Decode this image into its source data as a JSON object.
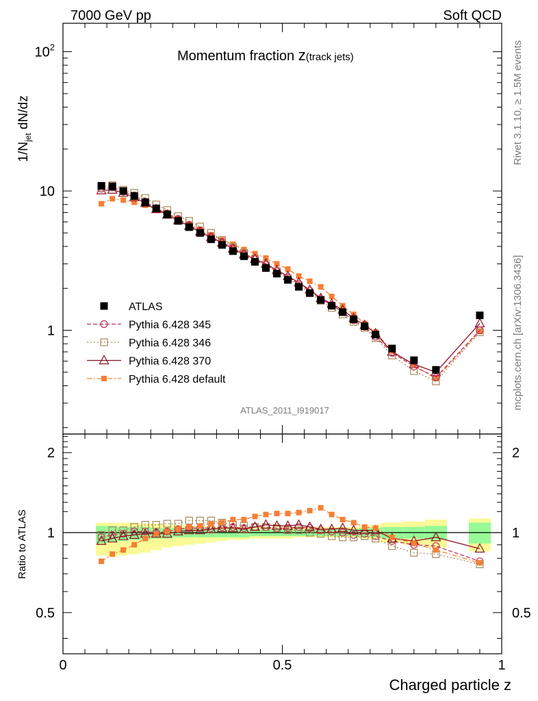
{
  "header": {
    "left": "7000 GeV pp",
    "right": "Soft QCD"
  },
  "side_text": {
    "top": "Rivet 3.1.10, ≥ 1.5M events",
    "bottom": "mcplots.cern.ch [arXiv:1306.3436]"
  },
  "chart_data": {
    "type": "line",
    "title_main": "Momentum fraction ",
    "title_var": "z",
    "title_sub": "(track jets)",
    "analysis_id": "ATLAS_2011_I919017",
    "ylabel_main": "1/N",
    "ylabel_sub": "jet",
    "ylabel_rest": " dN/dz",
    "ylabel_ratio": "Ratio to ATLAS",
    "xlabel": "Charged particle z",
    "xlim": [
      0,
      1
    ],
    "ylim": [
      0.18,
      160
    ],
    "ratio_ylim": [
      0.35,
      2.35
    ],
    "x_ticklabels": [
      "0",
      "0.5",
      "1"
    ],
    "x_ticks": [
      0,
      0.5,
      1
    ],
    "y_ticklabels": [
      "1",
      "10"
    ],
    "y_ticks": [
      1,
      10
    ],
    "y_top_label_base": "10",
    "y_top_label_exp": "2",
    "y_top_value": 100,
    "ratio_ticklabels": [
      "0.5",
      "1",
      "2"
    ],
    "ratio_ticks": [
      0.5,
      1,
      2
    ],
    "x": [
      0.0875,
      0.1125,
      0.1375,
      0.1625,
      0.1875,
      0.2125,
      0.2375,
      0.2625,
      0.2875,
      0.3125,
      0.3375,
      0.3625,
      0.3875,
      0.4125,
      0.4375,
      0.4625,
      0.4875,
      0.5125,
      0.5375,
      0.5625,
      0.5875,
      0.6125,
      0.6375,
      0.6625,
      0.6875,
      0.7125,
      0.75,
      0.8,
      0.85,
      0.95
    ],
    "series": [
      {
        "name": "ATLAS",
        "color": "#000000",
        "marker": "square-filled",
        "line": "none",
        "values": [
          10.9,
          10.8,
          10.0,
          9.2,
          8.3,
          7.5,
          6.8,
          6.1,
          5.5,
          5.0,
          4.5,
          4.1,
          3.7,
          3.4,
          3.1,
          2.8,
          2.55,
          2.3,
          2.05,
          1.85,
          1.65,
          1.5,
          1.35,
          1.2,
          1.07,
          0.93,
          0.74,
          0.61,
          0.52,
          1.28
        ]
      },
      {
        "name": "Pythia 6.428 345",
        "color": "#c0305a",
        "marker": "circle-open",
        "line": "dashed",
        "values": [
          10.4,
          10.6,
          9.9,
          9.3,
          8.4,
          7.5,
          6.9,
          6.3,
          5.7,
          5.2,
          4.7,
          4.3,
          3.9,
          3.55,
          3.25,
          2.95,
          2.65,
          2.4,
          2.15,
          1.92,
          1.68,
          1.52,
          1.35,
          1.18,
          1.06,
          0.9,
          0.69,
          0.55,
          0.46,
          1.0
        ]
      },
      {
        "name": "Pythia 6.428 346",
        "color": "#a88858",
        "marker": "square-open",
        "line": "dotted",
        "values": [
          10.7,
          11.0,
          10.2,
          9.7,
          8.9,
          8.0,
          7.3,
          6.6,
          6.1,
          5.55,
          5.0,
          4.45,
          3.95,
          3.6,
          3.25,
          2.95,
          2.65,
          2.35,
          2.1,
          1.85,
          1.63,
          1.45,
          1.3,
          1.15,
          1.04,
          0.88,
          0.66,
          0.51,
          0.43,
          0.97
        ]
      },
      {
        "name": "Pythia 6.428 370",
        "color": "#8a1020",
        "marker": "triangle-open",
        "line": "solid",
        "values": [
          10.1,
          10.2,
          9.7,
          9.0,
          8.2,
          7.4,
          6.75,
          6.15,
          5.6,
          5.1,
          4.65,
          4.25,
          3.85,
          3.5,
          3.25,
          3.0,
          2.7,
          2.45,
          2.2,
          1.95,
          1.7,
          1.55,
          1.4,
          1.22,
          1.09,
          0.95,
          0.7,
          0.57,
          0.5,
          1.12
        ]
      },
      {
        "name": "Pythia 6.428 default",
        "color": "#f47f36",
        "marker": "square-filled-small",
        "line": "dashdot",
        "values": [
          8.1,
          8.8,
          8.6,
          8.3,
          7.9,
          7.4,
          6.9,
          6.3,
          5.8,
          5.3,
          4.85,
          4.45,
          4.15,
          3.8,
          3.55,
          3.3,
          3.0,
          2.75,
          2.45,
          2.25,
          2.05,
          1.75,
          1.5,
          1.3,
          1.12,
          0.97,
          0.71,
          0.56,
          0.45,
          0.98
        ]
      }
    ],
    "ratio_series": [
      {
        "name": "Pythia 6.428 345",
        "values": [
          0.96,
          0.98,
          0.99,
          1.01,
          1.01,
          1.0,
          1.01,
          1.03,
          1.04,
          1.04,
          1.04,
          1.05,
          1.05,
          1.04,
          1.05,
          1.05,
          1.04,
          1.04,
          1.05,
          1.04,
          1.02,
          1.01,
          1.0,
          0.98,
          0.99,
          0.97,
          0.93,
          0.9,
          0.89,
          0.78
        ]
      },
      {
        "name": "Pythia 6.428 346",
        "values": [
          0.98,
          1.02,
          1.02,
          1.05,
          1.07,
          1.07,
          1.08,
          1.08,
          1.11,
          1.11,
          1.11,
          1.09,
          1.07,
          1.06,
          1.05,
          1.05,
          1.04,
          1.02,
          1.02,
          1.0,
          0.99,
          0.97,
          0.96,
          0.96,
          0.97,
          0.95,
          0.89,
          0.84,
          0.83,
          0.76
        ]
      },
      {
        "name": "Pythia 6.428 370",
        "values": [
          0.93,
          0.95,
          0.97,
          0.98,
          0.99,
          0.99,
          0.99,
          1.01,
          1.02,
          1.02,
          1.03,
          1.04,
          1.04,
          1.03,
          1.05,
          1.07,
          1.06,
          1.06,
          1.07,
          1.05,
          1.03,
          1.03,
          1.04,
          1.02,
          1.02,
          1.02,
          0.95,
          0.93,
          0.96,
          0.87
        ]
      },
      {
        "name": "Pythia 6.428 default",
        "values": [
          0.78,
          0.83,
          0.86,
          0.9,
          0.95,
          0.99,
          1.01,
          1.03,
          1.05,
          1.06,
          1.08,
          1.09,
          1.12,
          1.12,
          1.15,
          1.17,
          1.18,
          1.18,
          1.19,
          1.21,
          1.24,
          1.17,
          1.12,
          1.09,
          1.05,
          1.04,
          0.96,
          0.91,
          0.86,
          0.77
        ]
      }
    ],
    "ratio_band": {
      "edges": [
        0.075,
        0.1,
        0.125,
        0.15,
        0.175,
        0.2,
        0.225,
        0.25,
        0.275,
        0.3,
        0.325,
        0.35,
        0.375,
        0.4,
        0.425,
        0.45,
        0.475,
        0.5,
        0.525,
        0.55,
        0.575,
        0.6,
        0.625,
        0.65,
        0.675,
        0.7,
        0.725,
        0.775,
        0.825,
        0.875,
        0.925,
        0.975
      ],
      "inner_lo": [
        0.91,
        0.92,
        0.93,
        0.94,
        0.94,
        0.95,
        0.95,
        0.96,
        0.96,
        0.96,
        0.96,
        0.96,
        0.96,
        0.96,
        0.97,
        0.97,
        0.97,
        0.97,
        0.97,
        0.97,
        0.97,
        0.97,
        0.97,
        0.97,
        0.96,
        0.96,
        0.95,
        0.95,
        0.94,
        null,
        0.91
      ],
      "inner_hi": [
        1.06,
        1.06,
        1.05,
        1.05,
        1.05,
        1.04,
        1.04,
        1.04,
        1.04,
        1.04,
        1.04,
        1.03,
        1.03,
        1.03,
        1.03,
        1.03,
        1.03,
        1.03,
        1.03,
        1.03,
        1.03,
        1.03,
        1.03,
        1.03,
        1.04,
        1.04,
        1.05,
        1.05,
        1.06,
        null,
        1.09
      ],
      "outer_lo": [
        0.82,
        0.81,
        0.82,
        0.83,
        0.84,
        0.86,
        0.88,
        0.89,
        0.9,
        0.91,
        0.92,
        0.93,
        0.94,
        0.94,
        0.95,
        0.95,
        0.95,
        0.95,
        0.96,
        0.96,
        0.96,
        0.96,
        0.96,
        0.96,
        0.95,
        0.94,
        0.92,
        0.9,
        0.88,
        null,
        0.85
      ],
      "outer_hi": [
        1.09,
        1.09,
        1.09,
        1.09,
        1.08,
        1.08,
        1.07,
        1.07,
        1.06,
        1.06,
        1.06,
        1.05,
        1.05,
        1.05,
        1.05,
        1.05,
        1.05,
        1.05,
        1.05,
        1.05,
        1.05,
        1.05,
        1.05,
        1.05,
        1.06,
        1.07,
        1.09,
        1.1,
        1.12,
        null,
        1.13
      ]
    }
  }
}
